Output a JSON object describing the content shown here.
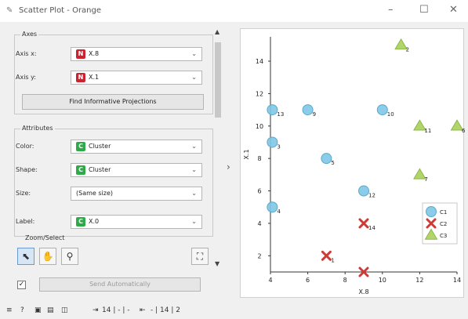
{
  "window": {
    "title": "Scatter Plot - Orange",
    "app_icon": "scatter-plot-icon",
    "minimize": "–",
    "maximize": "☐",
    "close": "✕"
  },
  "controls": {
    "axes_group": "Axes",
    "axis_x_label": "Axis x:",
    "axis_x_value": "X.8",
    "axis_x_type": "N",
    "axis_y_label": "Axis y:",
    "axis_y_value": "X.1",
    "axis_y_type": "N",
    "find_projections": "Find Informative Projections",
    "attributes_group": "Attributes",
    "color_label": "Color:",
    "color_value": "Cluster",
    "color_type": "C",
    "shape_label": "Shape:",
    "shape_value": "Cluster",
    "shape_type": "C",
    "size_label": "Size:",
    "size_value": "(Same size)",
    "label_label": "Label:",
    "label_value": "X.0",
    "label_type": "C",
    "zoom_group": "Zoom/Select",
    "send_auto": "Send Automatically",
    "send_auto_checked": true
  },
  "status_bar": {
    "inputs": "14 | - | -",
    "outputs": "- | 14 | 2"
  },
  "chart_data": {
    "type": "scatter",
    "xlabel": "X.8",
    "ylabel": "X.1",
    "xlim": [
      4,
      14
    ],
    "ylim": [
      1,
      15.5
    ],
    "xticks": [
      4,
      6,
      8,
      10,
      12,
      14
    ],
    "yticks": [
      2,
      4,
      6,
      8,
      10,
      12,
      14
    ],
    "grid": false,
    "legend_position": "bottom-right",
    "series": [
      {
        "name": "C1",
        "marker": "circle",
        "color": "#7ec8e6",
        "points": [
          {
            "x": 4.1,
            "y": 11,
            "label": "13"
          },
          {
            "x": 6,
            "y": 11,
            "label": "9"
          },
          {
            "x": 10,
            "y": 11,
            "label": "10"
          },
          {
            "x": 4.1,
            "y": 9,
            "label": "3"
          },
          {
            "x": 7,
            "y": 8,
            "label": "5"
          },
          {
            "x": 9,
            "y": 6,
            "label": "12"
          },
          {
            "x": 4.1,
            "y": 5,
            "label": "4"
          }
        ]
      },
      {
        "name": "C2",
        "marker": "cross",
        "color": "#cc3b35",
        "points": [
          {
            "x": 9,
            "y": 4,
            "label": "14"
          },
          {
            "x": 7,
            "y": 2,
            "label": "1"
          },
          {
            "x": 9,
            "y": 1,
            "label": ""
          }
        ]
      },
      {
        "name": "C3",
        "marker": "triangle",
        "color": "#a9cf5b",
        "points": [
          {
            "x": 11,
            "y": 15,
            "label": "2"
          },
          {
            "x": 12,
            "y": 10,
            "label": "11"
          },
          {
            "x": 14,
            "y": 10,
            "label": "6"
          },
          {
            "x": 12,
            "y": 7,
            "label": "7"
          }
        ]
      }
    ]
  }
}
